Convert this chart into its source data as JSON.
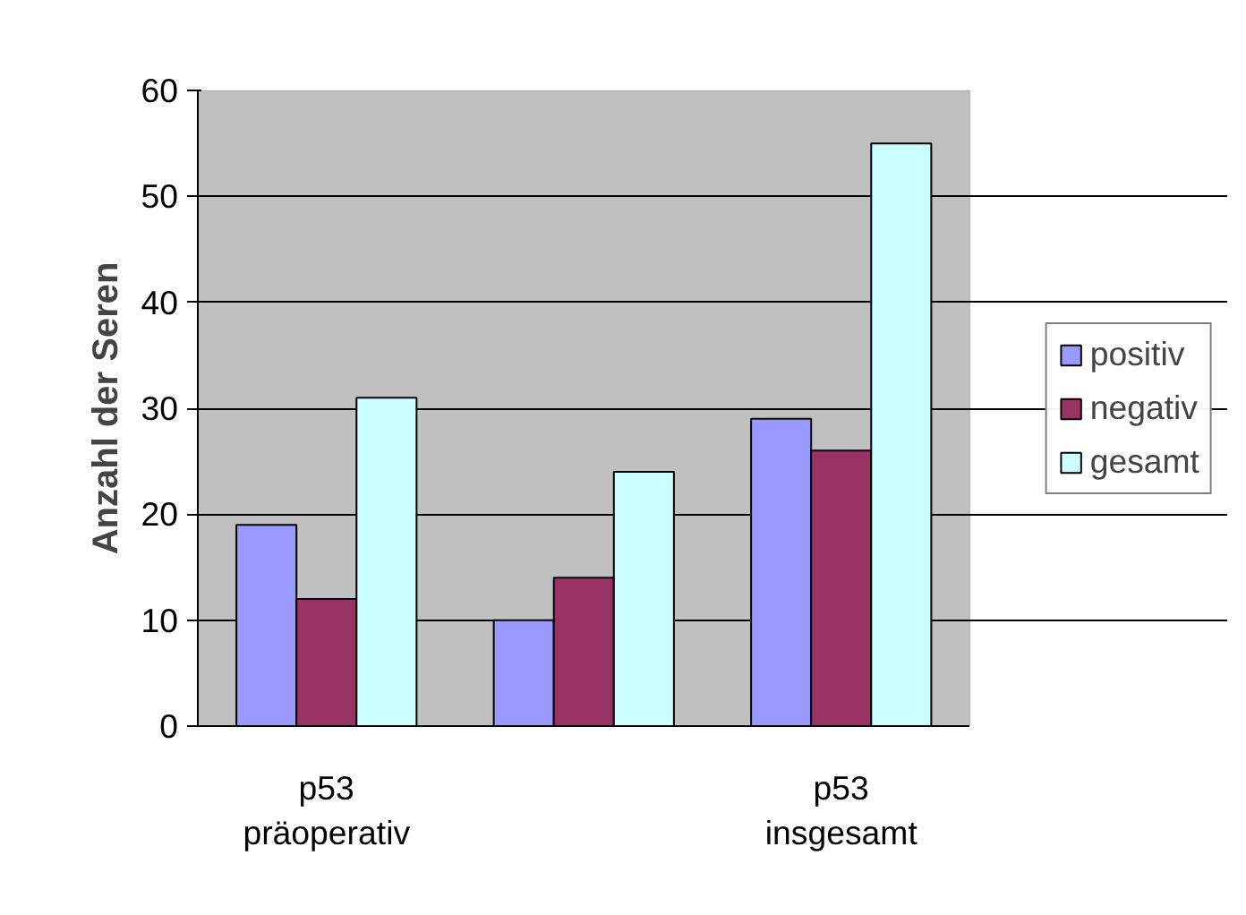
{
  "chart_data": {
    "type": "bar",
    "ylabel": "Anzahl der Seren",
    "categories": [
      "p53\npräoperativ",
      null,
      "p53\ninsgesamt"
    ],
    "series": [
      {
        "name": "positiv",
        "color": "#9999ff",
        "values": [
          19,
          10,
          29
        ]
      },
      {
        "name": "negativ",
        "color": "#993366",
        "values": [
          12,
          14,
          26
        ]
      },
      {
        "name": "gesamt",
        "color": "#ccffff",
        "values": [
          31,
          24,
          55
        ]
      }
    ],
    "ylim": [
      0,
      60
    ],
    "yticks": [
      0,
      10,
      20,
      30,
      40,
      50,
      60
    ],
    "grid": "y",
    "legend": "right"
  }
}
